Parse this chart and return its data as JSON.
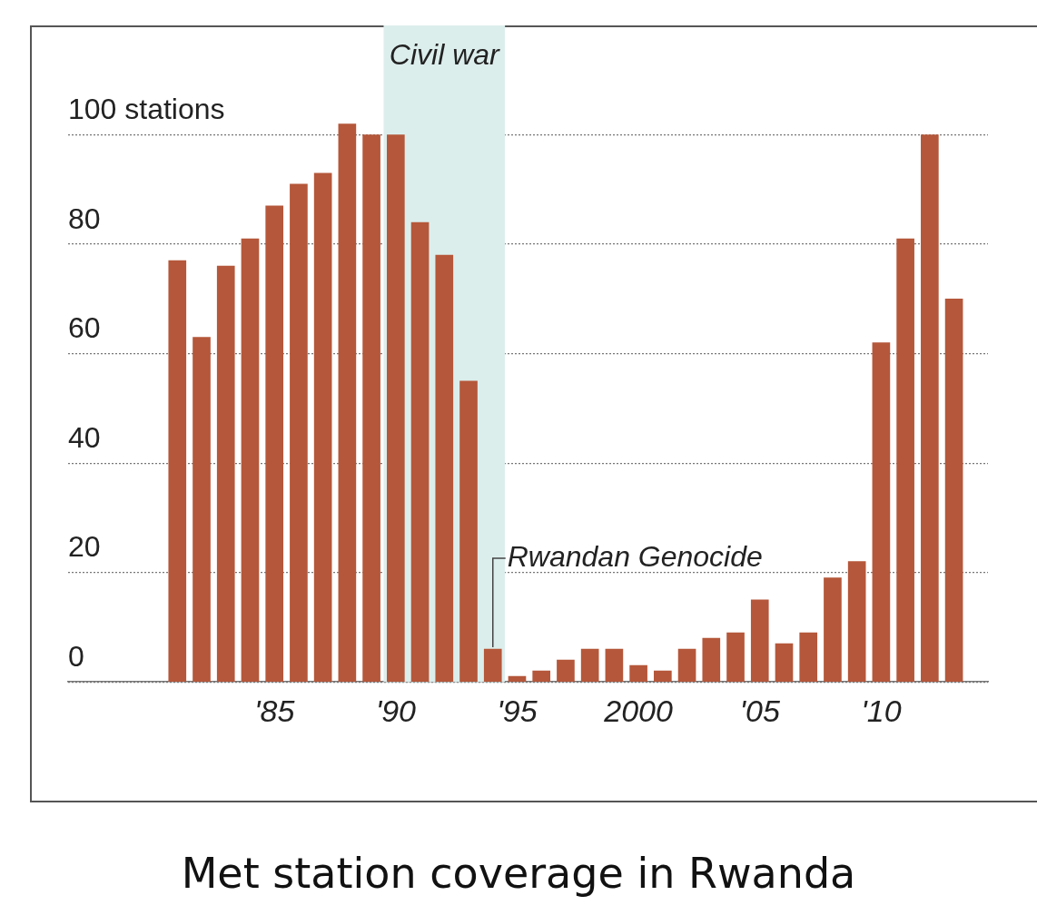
{
  "chart_data": {
    "type": "bar",
    "title": "Met station coverage in Rwanda",
    "x": [
      1981,
      1982,
      1983,
      1984,
      1985,
      1986,
      1987,
      1988,
      1989,
      1990,
      1991,
      1992,
      1993,
      1994,
      1995,
      1996,
      1997,
      1998,
      1999,
      2000,
      2001,
      2002,
      2003,
      2004,
      2005,
      2006,
      2007,
      2008,
      2009,
      2010,
      2011,
      2012,
      2013
    ],
    "values": [
      77,
      63,
      76,
      81,
      87,
      91,
      93,
      102,
      100,
      100,
      84,
      78,
      55,
      6,
      1,
      2,
      4,
      6,
      6,
      3,
      2,
      6,
      8,
      9,
      15,
      7,
      9,
      19,
      22,
      62,
      81,
      100,
      70
    ],
    "color": "#b5573a",
    "xlim": [
      1976.5,
      2014.4
    ],
    "xticks": [
      {
        "value": 1985,
        "label": "'85"
      },
      {
        "value": 1990,
        "label": "'90"
      },
      {
        "value": 1995,
        "label": "'95"
      },
      2000,
      {
        "value": 2005,
        "label": "'05"
      },
      {
        "value": 2010,
        "label": "'10"
      }
    ],
    "ylim": [
      0,
      120
    ],
    "yticks": [
      0,
      20,
      40,
      60,
      80,
      {
        "value": 100,
        "label": "100 stations"
      }
    ],
    "grid": "y",
    "bands": [
      {
        "axis": "x",
        "from": 1989.5,
        "to": 1994.5,
        "label": "Civil war",
        "color": "#dceeec"
      }
    ],
    "annotations": [
      {
        "text": "Rwandan Genocide",
        "x": 1994,
        "y": 6
      }
    ]
  }
}
